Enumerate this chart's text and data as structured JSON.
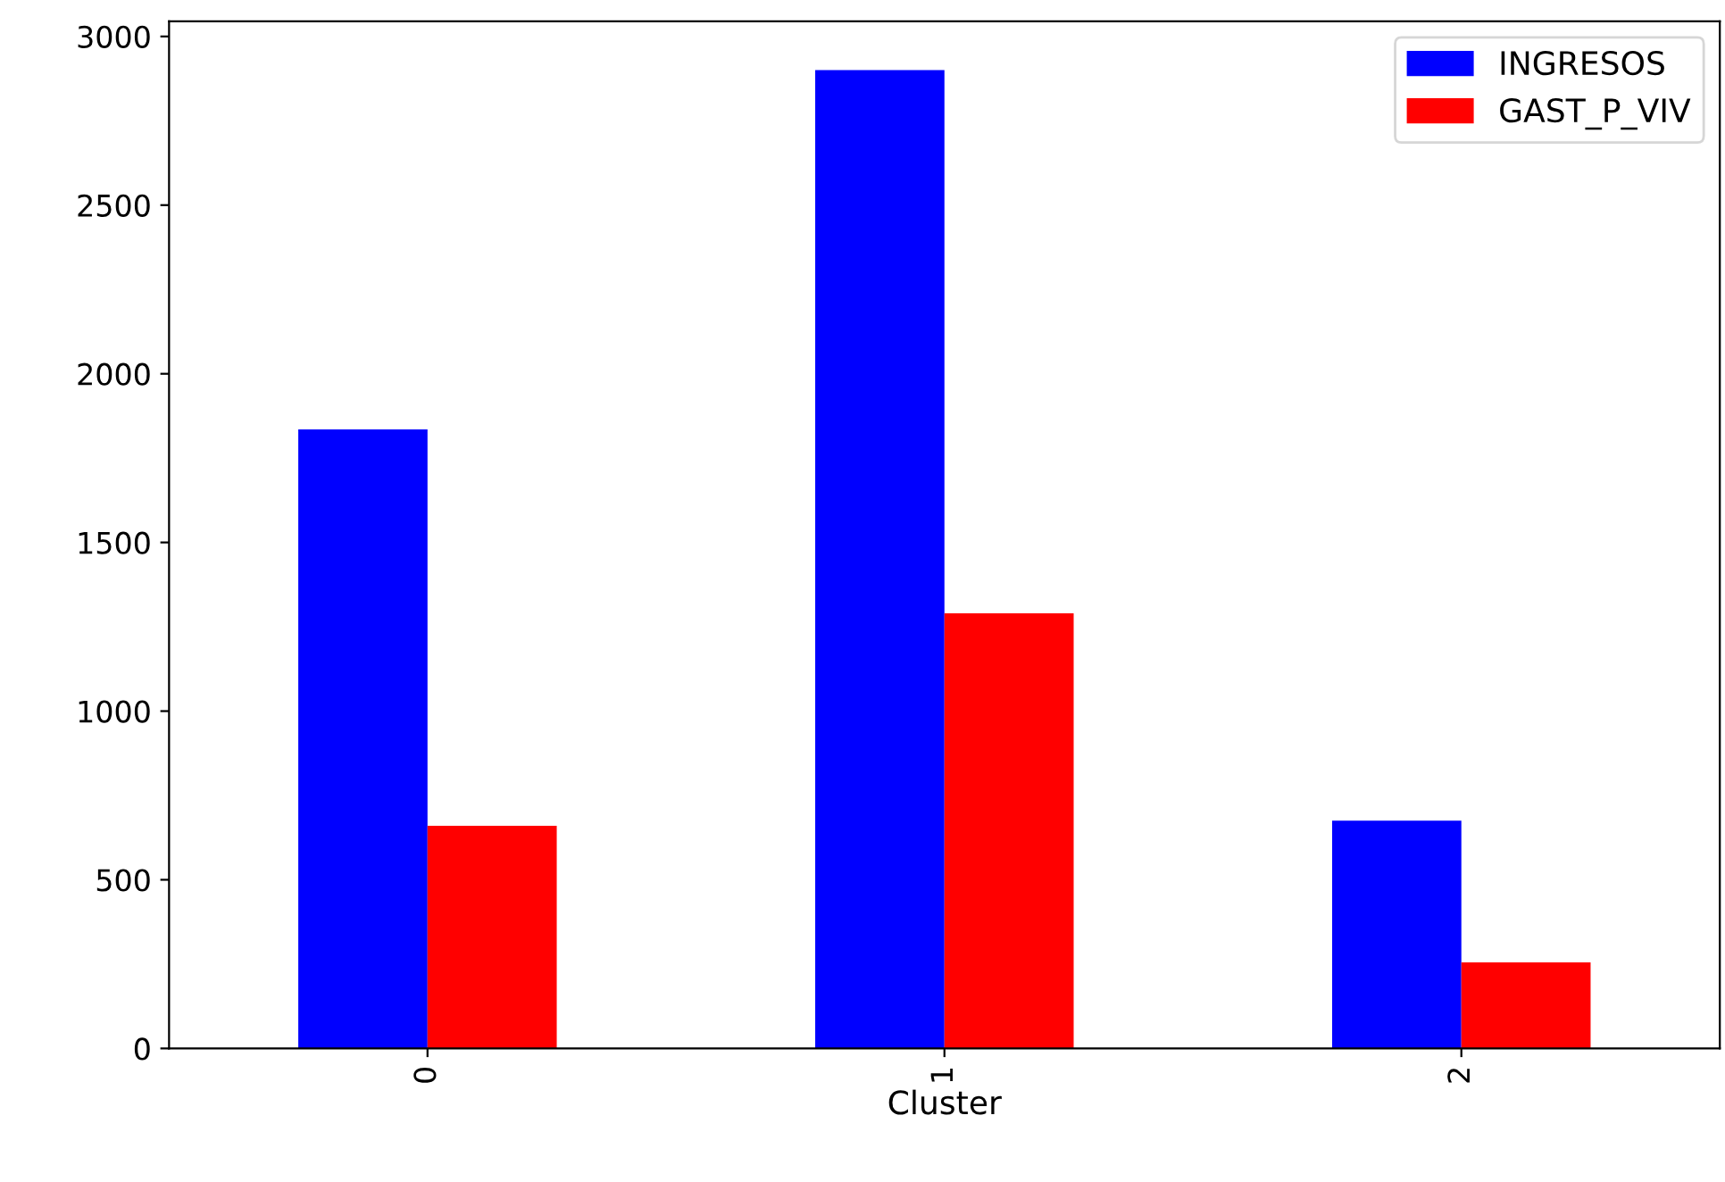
{
  "chart_data": {
    "type": "bar",
    "xlabel": "Cluster",
    "categories": [
      "0",
      "1",
      "2"
    ],
    "series": [
      {
        "name": "INGRESOS",
        "color": "#0000ff",
        "values": [
          1835,
          2900,
          675
        ]
      },
      {
        "name": "GAST_P_VIV",
        "color": "#ff0000",
        "values": [
          660,
          1290,
          255
        ]
      }
    ],
    "ylim": [
      0,
      3045
    ],
    "yticks": [
      0,
      500,
      1000,
      1500,
      2000,
      2500,
      3000
    ],
    "grid": false,
    "legend": "top right"
  }
}
